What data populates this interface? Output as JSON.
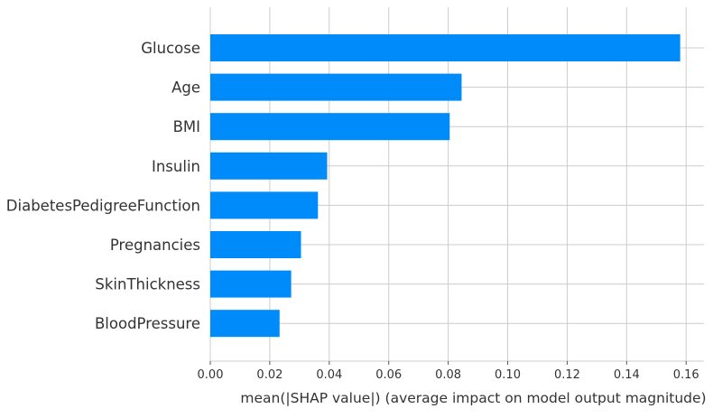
{
  "chart_data": {
    "type": "bar",
    "orientation": "horizontal",
    "categories": [
      "Glucose",
      "Age",
      "BMI",
      "Insulin",
      "DiabetesPedigreeFunction",
      "Pregnancies",
      "SkinThickness",
      "BloodPressure"
    ],
    "values": [
      0.158,
      0.0845,
      0.0805,
      0.0393,
      0.0362,
      0.0305,
      0.0272,
      0.0233
    ],
    "xlabel": "mean(|SHAP value|) (average impact on model output magnitude)",
    "ylabel": "",
    "xlim": [
      0,
      0.166
    ],
    "xticks": [
      0.0,
      0.02,
      0.04,
      0.06,
      0.08,
      0.1,
      0.12,
      0.14,
      0.16
    ],
    "xtick_labels": [
      "0.00",
      "0.02",
      "0.04",
      "0.06",
      "0.08",
      "0.10",
      "0.12",
      "0.14",
      "0.16"
    ],
    "grid": true,
    "bar_color": "#008bfb",
    "grid_color": "#cccccc",
    "text_color": "#333333"
  }
}
